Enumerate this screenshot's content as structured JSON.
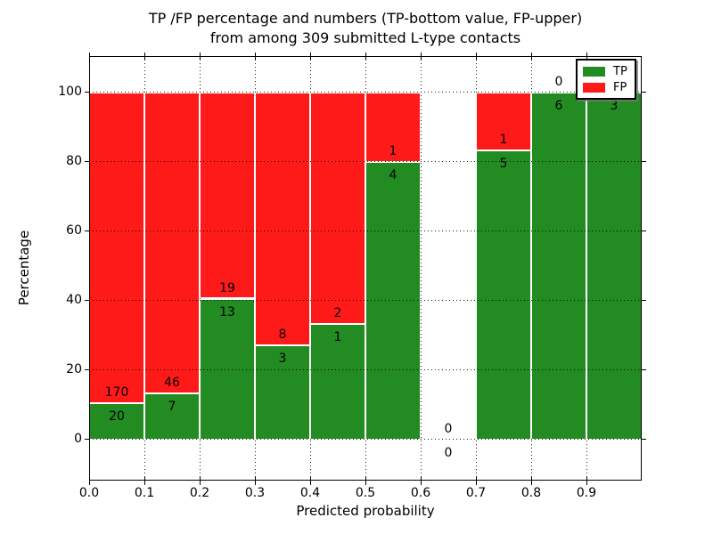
{
  "figure": {
    "title_line1": "TP /FP percentage and numbers (TP-bottom value, FP-upper)",
    "title_line2": "from among 309 submitted L-type contacts"
  },
  "chart_data": {
    "type": "bar",
    "stacked": true,
    "title": "TP /FP percentage and numbers (TP-bottom value, FP-upper)\nfrom among 309 submitted L-type contacts",
    "xlabel": "Predicted probability",
    "ylabel": "Percentage",
    "xlim": [
      0.0,
      1.0
    ],
    "ylim": [
      -11.8,
      110.5
    ],
    "x_ticks": [
      0.0,
      0.1,
      0.2,
      0.3,
      0.4,
      0.5,
      0.6,
      0.7,
      0.8,
      0.9
    ],
    "x_tick_labels": [
      "0.0",
      "0.1",
      "0.2",
      "0.3",
      "0.4",
      "0.5",
      "0.6",
      "0.7",
      "0.8",
      "0.9"
    ],
    "y_ticks": [
      0,
      20,
      40,
      60,
      80,
      100
    ],
    "y_tick_labels": [
      "0",
      "20",
      "40",
      "60",
      "80",
      "100"
    ],
    "grid": "dotted black, horizontal and vertical",
    "total_contacts": 309,
    "series": [
      {
        "name": "TP",
        "color": "#228b22"
      },
      {
        "name": "FP",
        "color": "#ff1a1a"
      }
    ],
    "bins": [
      {
        "x0": 0.0,
        "x1": 0.1,
        "tp": 20,
        "fp": 170,
        "tp_pct": 10.53
      },
      {
        "x0": 0.1,
        "x1": 0.2,
        "tp": 7,
        "fp": 46,
        "tp_pct": 13.21
      },
      {
        "x0": 0.2,
        "x1": 0.3,
        "tp": 13,
        "fp": 19,
        "tp_pct": 40.63
      },
      {
        "x0": 0.3,
        "x1": 0.4,
        "tp": 3,
        "fp": 8,
        "tp_pct": 27.27
      },
      {
        "x0": 0.4,
        "x1": 0.5,
        "tp": 1,
        "fp": 2,
        "tp_pct": 33.33
      },
      {
        "x0": 0.5,
        "x1": 0.6,
        "tp": 4,
        "fp": 1,
        "tp_pct": 80.0
      },
      {
        "x0": 0.6,
        "x1": 0.7,
        "tp": 0,
        "fp": 0,
        "tp_pct": 0,
        "empty": true
      },
      {
        "x0": 0.7,
        "x1": 0.8,
        "tp": 5,
        "fp": 1,
        "tp_pct": 83.33
      },
      {
        "x0": 0.8,
        "x1": 0.9,
        "tp": 6,
        "fp": 0,
        "tp_pct": 100
      },
      {
        "x0": 0.9,
        "x1": 1.0,
        "tp": 3,
        "fp": 0,
        "tp_pct": 100
      }
    ],
    "legend": {
      "position": "upper right",
      "entries": [
        {
          "label": "TP",
          "color": "#228b22"
        },
        {
          "label": "FP",
          "color": "#ff1a1a"
        }
      ]
    }
  }
}
